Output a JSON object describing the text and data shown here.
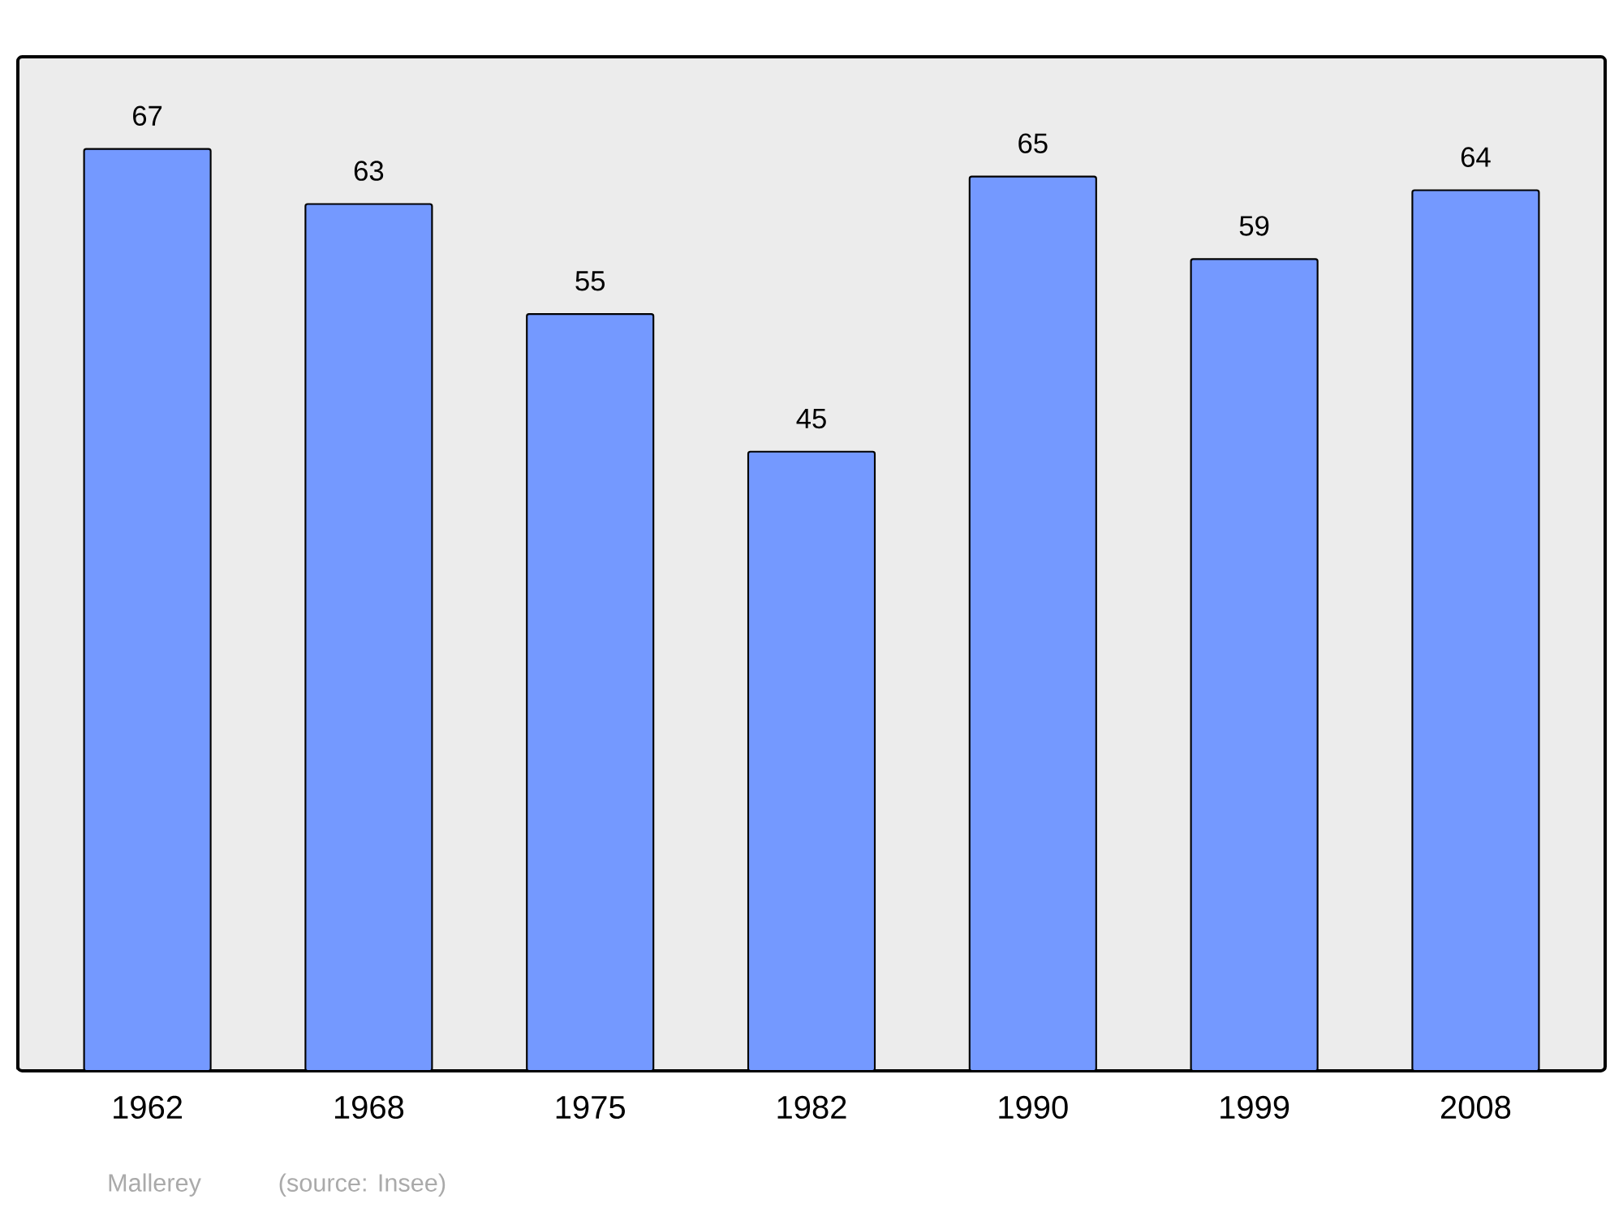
{
  "chart_data": {
    "type": "bar",
    "categories": [
      "1962",
      "1968",
      "1975",
      "1982",
      "1990",
      "1999",
      "2008"
    ],
    "values": [
      67,
      63,
      55,
      45,
      65,
      59,
      64
    ],
    "color": "#7499ff",
    "data_labels": true,
    "tick_labels": "x",
    "annotations": [
      "Mallerey",
      "(source: Insee)"
    ]
  }
}
